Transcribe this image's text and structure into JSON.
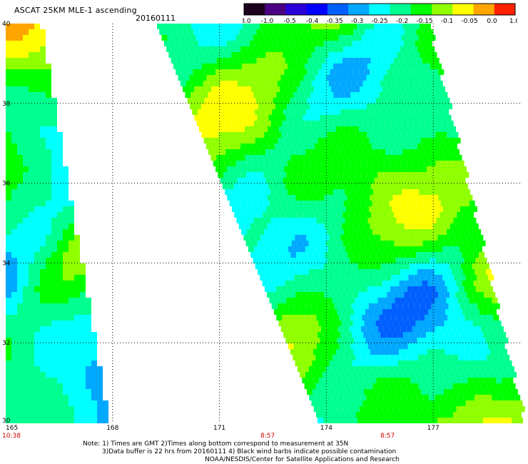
{
  "header": {
    "title": "ASCAT 25KM MLE-1 ascending",
    "date": "20160111"
  },
  "colorbar": {
    "tick_labels": [
      "-3.0",
      "-1.0",
      "-0.5",
      "-0.4",
      "-0.35",
      "-0.3",
      "-0.25",
      "-0.2",
      "-0.15",
      "-0.1",
      "-0.05",
      "0.0",
      "1.0"
    ],
    "colors": [
      "#1a001a",
      "#4b0082",
      "#2a00d8",
      "#0000ff",
      "#0060ff",
      "#00a8ff",
      "#00ffff",
      "#00ff90",
      "#00ff00",
      "#90ff00",
      "#ffff00",
      "#ffa500",
      "#ff2000"
    ]
  },
  "map": {
    "lat_labels": [
      "40",
      "38",
      "36",
      "34",
      "32",
      "30"
    ],
    "lon_labels": [
      "165",
      "168",
      "171",
      "174",
      "177"
    ],
    "lat_range": [
      30,
      40
    ],
    "lon_range": [
      165,
      179.5
    ],
    "time_labels": [
      "10:38",
      "8:57",
      "8:57"
    ],
    "time_color": "#cc0000"
  },
  "notes": {
    "line1": "Note: 1) Times are GMT 2)Times along bottom correspond to measurement at 35N",
    "line2": "3)Data buffer is 22 hrs from 20160111 4) Black wind barbs indicate possible contamination",
    "line3": "NOAA/NESDIS/Center for Satellite Applications and Research"
  }
}
